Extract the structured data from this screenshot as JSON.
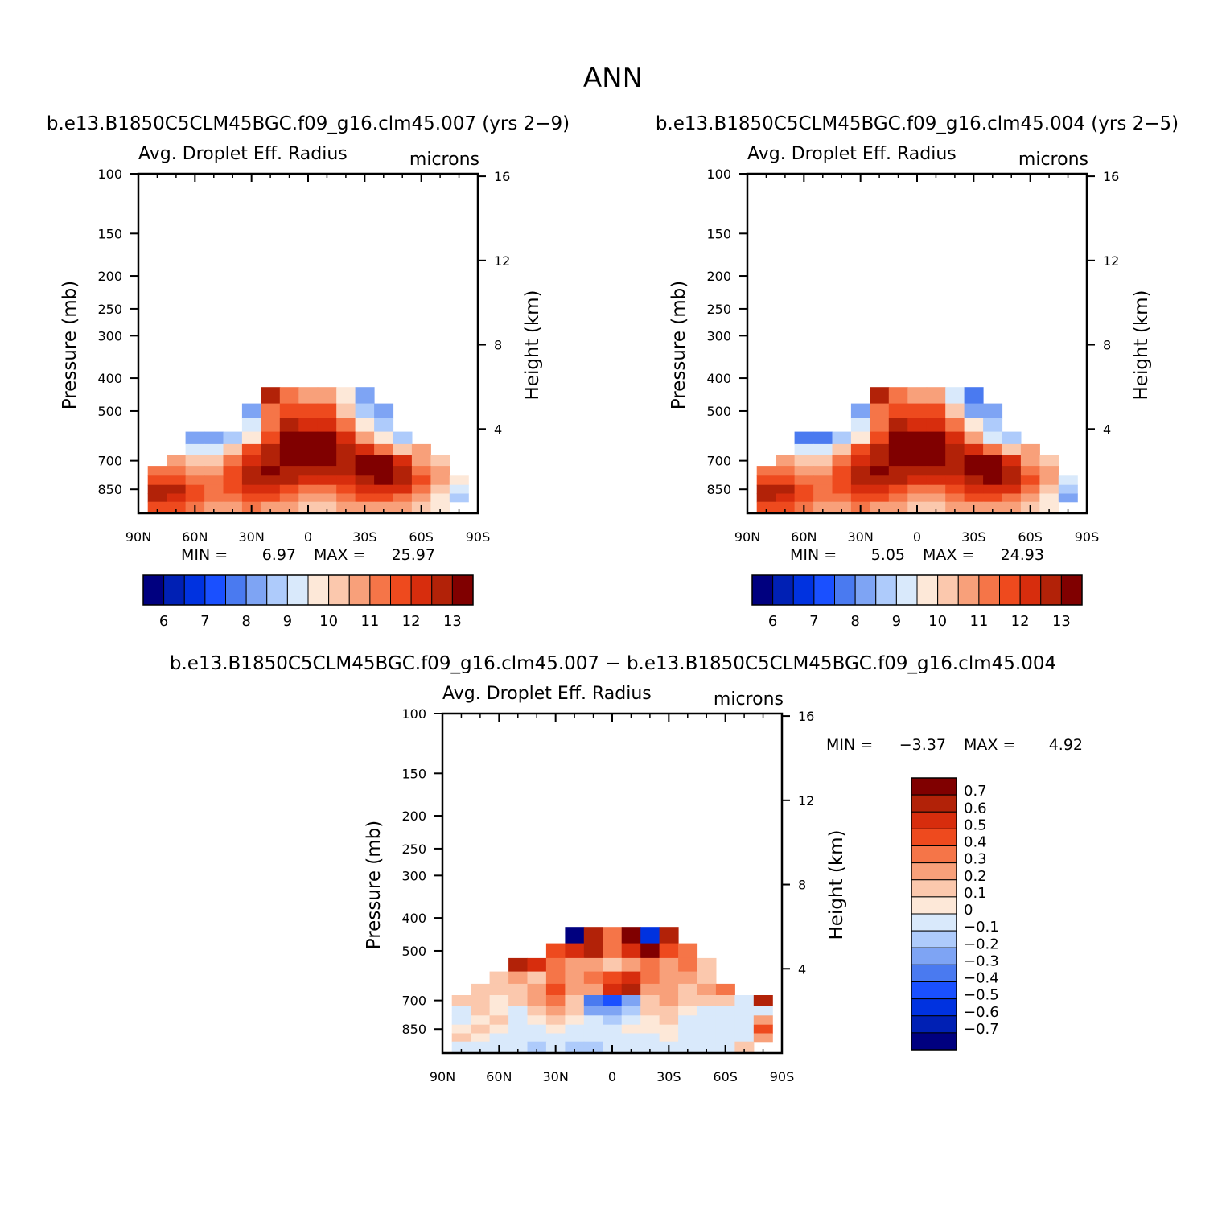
{
  "figure": {
    "season": "ANN",
    "panel1_title": "b.e13.B1850C5CLM45BGC.f09_g16.clm45.007 (yrs 2−9)",
    "panel2_title": "b.e13.B1850C5CLM45BGC.f09_g16.clm45.004 (yrs 2−5)",
    "panel3_title": "b.e13.B1850C5CLM45BGC.f09_g16.clm45.007 − b.e13.B1850C5CLM45BGC.f09_g16.clm45.004"
  },
  "labels": {
    "variable": "Avg. Droplet Eff. Radius",
    "units": "microns",
    "pressure_axis": "Pressure (mb)",
    "height_axis": "Height (km)",
    "min_label": "MIN =",
    "max_label": "MAX ="
  },
  "colors": {
    "abs_levels": [
      "#00007f",
      "#0020b4",
      "#0032e0",
      "#1a50ff",
      "#4a7af0",
      "#7ea4f4",
      "#aecbfb",
      "#d9e9fb",
      "#fde8d8",
      "#fbc8ad",
      "#f8a07a",
      "#f57548",
      "#ee4a1e",
      "#d72d0d",
      "#b22208",
      "#800000"
    ],
    "diff_levels": [
      "#00007f",
      "#0020b4",
      "#0032e0",
      "#1a50ff",
      "#4a7af0",
      "#7ea4f4",
      "#aecbfb",
      "#d9e9fb",
      "#fde8d8",
      "#fbc8ad",
      "#f8a07a",
      "#f57548",
      "#ee4a1e",
      "#d72d0d",
      "#b22208",
      "#800000"
    ]
  },
  "chart_data": [
    {
      "type": "heatmap",
      "title": "b.e13.B1850C5CLM45BGC.f09_g16.clm45.007 (yrs 2−9)",
      "variable": "Avg. Droplet Eff. Radius",
      "units": "microns",
      "xlabel": "",
      "ylabel": "Pressure (mb)",
      "y2label": "Height (km)",
      "xticks": [
        "90N",
        "60N",
        "30N",
        "0",
        "30S",
        "60S",
        "90S"
      ],
      "yticks": [
        100,
        150,
        200,
        250,
        300,
        400,
        500,
        700,
        850
      ],
      "y2ticks": [
        4,
        8,
        12,
        16
      ],
      "x_range": [
        90,
        -90
      ],
      "y_range": [
        100,
        1000
      ],
      "y_scale": "log",
      "min": "6.97",
      "max": "25.97",
      "colorbar_labels": [
        "6",
        "7",
        "8",
        "9",
        "10",
        "11",
        "12",
        "13"
      ],
      "field": {
        "lat_cols": [
          90,
          80,
          70,
          60,
          50,
          40,
          30,
          20,
          10,
          0,
          -10,
          -20,
          -30,
          -40,
          -50,
          -60,
          -70,
          -80,
          -90
        ],
        "p_rows": [
          450,
          500,
          550,
          600,
          650,
          700,
          750,
          800,
          850,
          900,
          950
        ],
        "values": [
          [
            null,
            null,
            null,
            null,
            null,
            null,
            null,
            12.5,
            11.0,
            10.5,
            10.5,
            9.5,
            8.0,
            null,
            null,
            null,
            null,
            null,
            null
          ],
          [
            null,
            null,
            null,
            null,
            null,
            null,
            8.0,
            11.0,
            11.5,
            11.5,
            11.5,
            10.0,
            8.5,
            8.0,
            null,
            null,
            null,
            null,
            null
          ],
          [
            null,
            null,
            null,
            null,
            null,
            null,
            9.0,
            11.0,
            12.5,
            12.0,
            12.0,
            11.0,
            9.5,
            8.5,
            null,
            null,
            null,
            null
          ],
          [
            null,
            null,
            null,
            8.0,
            8.0,
            8.5,
            9.5,
            11.5,
            13.2,
            13.2,
            13.0,
            12.0,
            10.5,
            9.5,
            8.5,
            null,
            null,
            null,
            null
          ],
          [
            null,
            null,
            null,
            9.0,
            9.0,
            10.0,
            11.5,
            12.5,
            13.5,
            13.5,
            13.5,
            12.5,
            12.0,
            11.0,
            10.0,
            10.5,
            null,
            null,
            null
          ],
          [
            null,
            null,
            10.5,
            10.0,
            10.0,
            11.0,
            12.0,
            12.5,
            13.5,
            13.5,
            13.5,
            12.5,
            13.2,
            13.2,
            12.0,
            10.5,
            10.0,
            null,
            null
          ],
          [
            null,
            11.0,
            11.0,
            10.5,
            10.5,
            11.5,
            12.5,
            13.0,
            12.8,
            12.5,
            12.5,
            12.5,
            13.5,
            13.5,
            12.5,
            11.0,
            10.5,
            null,
            null
          ],
          [
            null,
            11.5,
            11.5,
            11.0,
            11.0,
            11.5,
            12.5,
            12.5,
            12.5,
            12.0,
            12.0,
            12.0,
            12.5,
            13.0,
            12.5,
            11.5,
            10.5,
            9.5,
            null
          ],
          [
            null,
            12.5,
            12.5,
            11.5,
            11.0,
            11.5,
            12.0,
            12.0,
            11.5,
            11.0,
            11.0,
            11.5,
            12.0,
            12.0,
            12.0,
            11.0,
            10.0,
            9.0,
            null
          ],
          [
            null,
            12.5,
            12.0,
            11.5,
            11.0,
            11.0,
            11.5,
            11.5,
            11.0,
            10.5,
            10.5,
            11.0,
            11.5,
            11.5,
            11.0,
            10.5,
            9.5,
            8.5,
            null
          ],
          [
            null,
            11.5,
            11.5,
            11.0,
            10.5,
            10.5,
            11.0,
            10.5,
            10.5,
            10.0,
            10.0,
            10.5,
            10.5,
            10.5,
            10.5,
            10.0,
            9.5,
            null,
            null
          ]
        ]
      }
    },
    {
      "type": "heatmap",
      "title": "b.e13.B1850C5CLM45BGC.f09_g16.clm45.004 (yrs 2−5)",
      "variable": "Avg. Droplet Eff. Radius",
      "units": "microns",
      "xlabel": "",
      "ylabel": "Pressure (mb)",
      "y2label": "Height (km)",
      "xticks": [
        "90N",
        "60N",
        "30N",
        "0",
        "30S",
        "60S",
        "90S"
      ],
      "yticks": [
        100,
        150,
        200,
        250,
        300,
        400,
        500,
        700,
        850
      ],
      "y2ticks": [
        4,
        8,
        12,
        16
      ],
      "x_range": [
        90,
        -90
      ],
      "y_range": [
        100,
        1000
      ],
      "y_scale": "log",
      "min": "5.05",
      "max": "24.93",
      "colorbar_labels": [
        "6",
        "7",
        "8",
        "9",
        "10",
        "11",
        "12",
        "13"
      ],
      "field": {
        "lat_cols": [
          90,
          80,
          70,
          60,
          50,
          40,
          30,
          20,
          10,
          0,
          -10,
          -20,
          -30,
          -40,
          -50,
          -60,
          -70,
          -80,
          -90
        ],
        "p_rows": [
          450,
          500,
          550,
          600,
          650,
          700,
          750,
          800,
          850,
          900,
          950
        ],
        "values": [
          [
            null,
            null,
            null,
            null,
            null,
            null,
            null,
            12.5,
            11.0,
            10.5,
            10.5,
            9.0,
            7.5,
            null,
            null,
            null,
            null,
            null,
            null
          ],
          [
            null,
            null,
            null,
            null,
            null,
            null,
            8.0,
            11.0,
            11.5,
            11.5,
            11.5,
            10.0,
            8.0,
            8.0,
            null,
            null,
            null,
            null
          ],
          [
            null,
            null,
            null,
            null,
            null,
            null,
            9.0,
            11.0,
            12.5,
            12.0,
            12.0,
            11.0,
            9.5,
            8.5,
            null,
            null,
            null,
            null
          ],
          [
            null,
            null,
            null,
            7.5,
            7.5,
            8.5,
            9.5,
            11.5,
            13.2,
            13.2,
            13.0,
            12.0,
            10.5,
            9.0,
            8.5,
            null,
            null,
            null,
            null
          ],
          [
            null,
            null,
            null,
            9.0,
            9.0,
            10.0,
            11.5,
            12.5,
            13.5,
            13.5,
            13.5,
            12.5,
            12.0,
            11.0,
            10.0,
            10.5,
            null,
            null,
            null
          ],
          [
            null,
            null,
            10.5,
            10.0,
            10.0,
            11.0,
            12.0,
            12.5,
            13.5,
            13.5,
            13.5,
            12.5,
            13.2,
            13.2,
            12.0,
            10.5,
            10.0,
            null,
            null
          ],
          [
            null,
            11.0,
            11.0,
            10.5,
            10.5,
            11.5,
            12.5,
            13.0,
            12.8,
            12.5,
            12.5,
            12.5,
            13.5,
            13.5,
            12.5,
            11.0,
            10.5,
            null,
            null
          ],
          [
            null,
            11.5,
            11.5,
            11.0,
            11.0,
            11.5,
            12.5,
            12.5,
            12.5,
            12.0,
            12.0,
            12.0,
            12.5,
            13.0,
            12.5,
            11.5,
            10.5,
            9.0,
            null
          ],
          [
            null,
            12.5,
            12.5,
            11.5,
            11.0,
            11.5,
            12.0,
            12.0,
            11.5,
            11.0,
            11.0,
            11.5,
            12.0,
            12.0,
            12.0,
            11.0,
            10.0,
            8.5,
            null
          ],
          [
            null,
            12.5,
            12.0,
            11.5,
            11.0,
            11.0,
            11.5,
            11.5,
            11.0,
            10.5,
            10.5,
            11.0,
            11.5,
            11.5,
            11.0,
            10.5,
            9.5,
            8.0,
            null
          ],
          [
            null,
            11.5,
            11.5,
            11.0,
            10.5,
            10.5,
            11.0,
            10.5,
            10.5,
            10.0,
            10.0,
            10.5,
            10.5,
            10.5,
            10.5,
            10.0,
            9.5,
            null,
            null
          ]
        ]
      }
    },
    {
      "type": "heatmap",
      "title": "b.e13.B1850C5CLM45BGC.f09_g16.clm45.007 − b.e13.B1850C5CLM45BGC.f09_g16.clm45.004",
      "variable": "Avg. Droplet Eff. Radius",
      "units": "microns",
      "xlabel": "",
      "ylabel": "Pressure (mb)",
      "y2label": "Height (km)",
      "xticks": [
        "90N",
        "60N",
        "30N",
        "0",
        "30S",
        "60S",
        "90S"
      ],
      "yticks": [
        100,
        150,
        200,
        250,
        300,
        400,
        500,
        700,
        850
      ],
      "y2ticks": [
        4,
        8,
        12,
        16
      ],
      "x_range": [
        90,
        -90
      ],
      "y_range": [
        100,
        1000
      ],
      "y_scale": "log",
      "min": "−3.37",
      "max": "4.92",
      "colorbar_labels": [
        "0.7",
        "0.6",
        "0.5",
        "0.4",
        "0.3",
        "0.2",
        "0.1",
        "0",
        "−0.1",
        "−0.2",
        "−0.3",
        "−0.4",
        "−0.5",
        "−0.6",
        "−0.7"
      ],
      "field": {
        "lat_cols": [
          90,
          80,
          70,
          60,
          50,
          40,
          30,
          20,
          10,
          0,
          -10,
          -20,
          -30,
          -40,
          -50,
          -60,
          -70,
          -80,
          -90
        ],
        "p_rows": [
          450,
          500,
          550,
          600,
          650,
          700,
          750,
          800,
          850,
          900,
          950
        ],
        "values": [
          [
            null,
            null,
            null,
            null,
            null,
            null,
            null,
            -0.8,
            0.6,
            0.3,
            0.7,
            -0.6,
            0.6,
            null,
            null,
            null,
            null,
            null,
            null
          ],
          [
            null,
            null,
            null,
            null,
            null,
            null,
            0.4,
            0.5,
            0.6,
            0.3,
            0.5,
            0.7,
            0.4,
            0.3,
            null,
            null,
            null,
            null,
            null
          ],
          [
            null,
            null,
            null,
            null,
            0.6,
            0.5,
            0.3,
            0.2,
            0.2,
            0.1,
            0.2,
            0.3,
            0.2,
            0.3,
            0.1,
            null,
            null,
            null,
            null
          ],
          [
            null,
            null,
            null,
            0.1,
            0.2,
            0.1,
            0.3,
            0.2,
            0.3,
            0.4,
            0.5,
            0.3,
            0.2,
            0.2,
            0.1,
            null,
            null,
            null,
            null
          ],
          [
            null,
            null,
            0.1,
            0.1,
            0.1,
            0.2,
            0.4,
            0.2,
            0.2,
            0.5,
            0.6,
            0.2,
            0.2,
            0.1,
            0.2,
            0.3,
            null,
            null,
            null
          ],
          [
            null,
            0.1,
            0.1,
            0.0,
            0.1,
            0.2,
            0.3,
            0.1,
            -0.4,
            -0.5,
            -0.3,
            0.1,
            0.2,
            0.1,
            0.1,
            0.1,
            -0.1,
            0.6,
            null
          ],
          [
            null,
            -0.1,
            0.1,
            0.0,
            -0.1,
            0.1,
            0.2,
            0.1,
            -0.3,
            -0.3,
            -0.2,
            0.1,
            0.1,
            0.0,
            -0.1,
            -0.1,
            -0.1,
            -0.1,
            null
          ],
          [
            null,
            -0.1,
            0.0,
            0.1,
            -0.1,
            0.0,
            0.1,
            0.0,
            -0.1,
            -0.2,
            -0.1,
            0.0,
            0.1,
            -0.1,
            -0.1,
            -0.1,
            -0.1,
            0.2,
            null
          ],
          [
            null,
            0.0,
            0.1,
            0.0,
            -0.1,
            -0.1,
            0.0,
            -0.1,
            -0.1,
            -0.1,
            0.0,
            0.0,
            0.0,
            -0.1,
            -0.1,
            -0.1,
            -0.1,
            0.4,
            null
          ],
          [
            null,
            0.1,
            0.0,
            -0.1,
            -0.1,
            -0.1,
            -0.1,
            -0.1,
            -0.1,
            -0.1,
            -0.1,
            -0.1,
            0.0,
            -0.1,
            -0.1,
            -0.1,
            -0.1,
            0.2,
            null
          ],
          [
            null,
            -0.1,
            -0.1,
            -0.1,
            -0.1,
            -0.2,
            -0.1,
            -0.2,
            -0.2,
            -0.1,
            -0.1,
            -0.1,
            -0.1,
            -0.1,
            -0.1,
            -0.1,
            0.1,
            null,
            null
          ]
        ]
      }
    }
  ]
}
